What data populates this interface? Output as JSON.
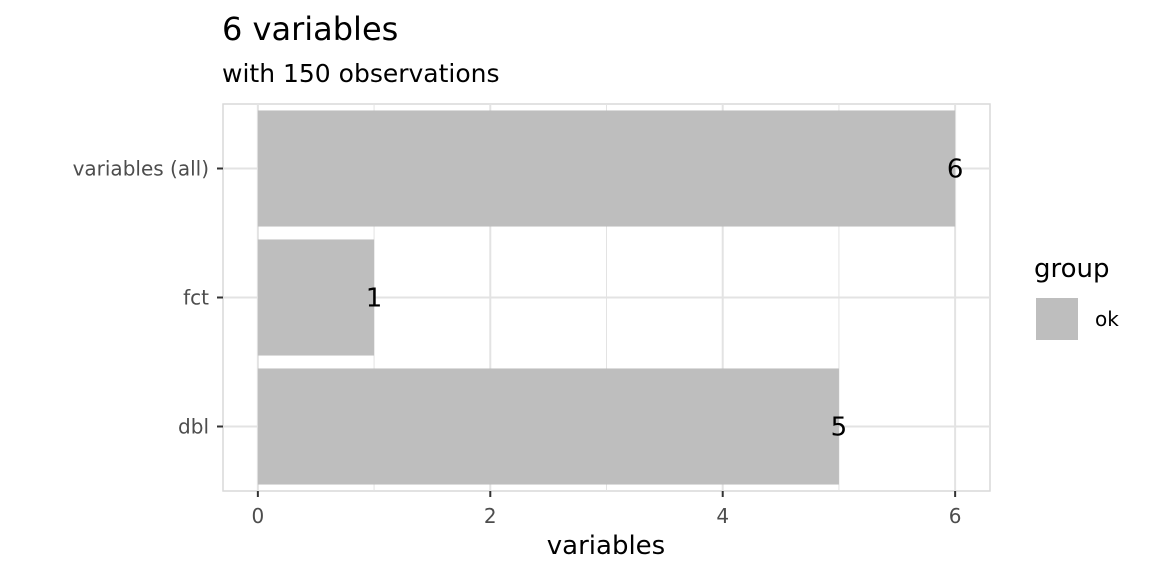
{
  "chart_data": {
    "type": "bar",
    "orientation": "horizontal",
    "title": "6 variables",
    "subtitle": "with 150 observations",
    "xlabel": "variables",
    "ylabel": "",
    "categories": [
      "variables (all)",
      "fct",
      "dbl"
    ],
    "values": [
      6,
      1,
      5
    ],
    "data_labels": [
      "6",
      "1",
      "5"
    ],
    "xlim": [
      -0.3,
      6.3
    ],
    "xticks": [
      0,
      2,
      4,
      6
    ],
    "xtick_labels": [
      "0",
      "2",
      "4",
      "6"
    ],
    "grid": true,
    "legend": {
      "title": "group",
      "placement": "right",
      "entries": [
        {
          "label": "ok",
          "color": "#bebebe"
        }
      ]
    },
    "bar_color": "#bebebe"
  }
}
